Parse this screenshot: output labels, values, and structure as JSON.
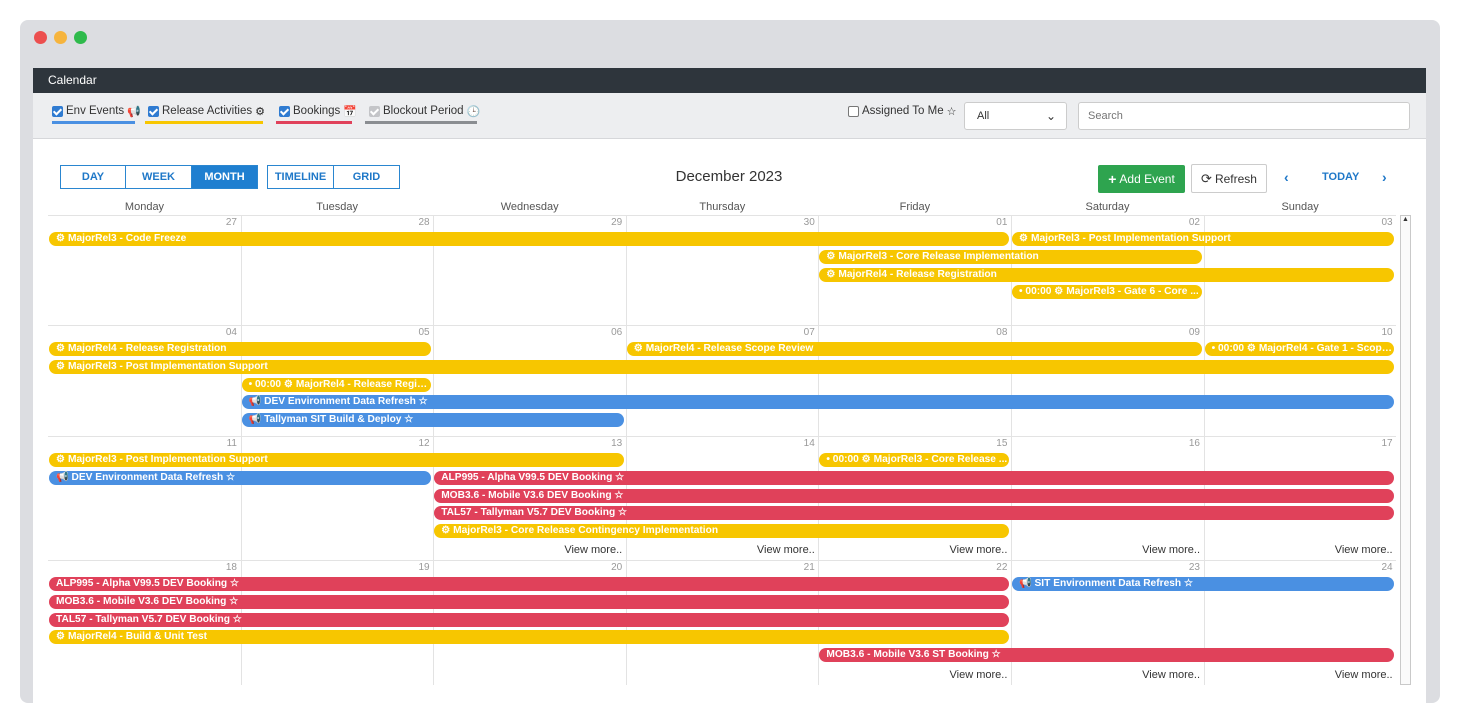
{
  "app": {
    "title": "Calendar"
  },
  "filters": [
    {
      "label": "Env Events",
      "icon": "📢",
      "checked": true,
      "color": "#4a90e2"
    },
    {
      "label": "Release Activities",
      "icon": "⚙",
      "checked": true,
      "color": "#f7c600"
    },
    {
      "label": "Bookings",
      "icon": "📅",
      "checked": true,
      "color": "#e0415a"
    },
    {
      "label": "Blockout Period",
      "icon": "🕒",
      "checked": true,
      "color": "#8a8d91"
    }
  ],
  "assigned": {
    "label": "Assigned To Me",
    "icon": "☆",
    "checked": false
  },
  "select": {
    "value": "All"
  },
  "search": {
    "placeholder": "Search"
  },
  "views": {
    "day": "DAY",
    "week": "WEEK",
    "month": "MONTH",
    "timeline": "TIMELINE",
    "grid": "GRID",
    "active": "MONTH"
  },
  "header": {
    "month": "December 2023",
    "add_label": "Add Event",
    "refresh_label": "Refresh",
    "today_label": "TODAY",
    "prev_icon": "‹",
    "next_icon": "›"
  },
  "days": [
    "Monday",
    "Tuesday",
    "Wednesday",
    "Thursday",
    "Friday",
    "Saturday",
    "Sunday"
  ],
  "weeks": [
    {
      "dates": [
        "27",
        "28",
        "29",
        "30",
        "01",
        "02",
        "03"
      ],
      "events": [
        {
          "text": "⚙ MajorRel3 - Code Freeze",
          "type": "y",
          "start": 0,
          "end": 4,
          "lane": 0
        },
        {
          "text": "⚙ MajorRel3 - Post Implementation Support",
          "type": "y",
          "start": 5,
          "end": 6,
          "lane": 0
        },
        {
          "text": "⚙ MajorRel3 - Core Release Implementation",
          "type": "y",
          "start": 4,
          "end": 5,
          "lane": 1
        },
        {
          "text": "⚙ MajorRel4 - Release Registration",
          "type": "y",
          "start": 4,
          "end": 6,
          "lane": 2
        },
        {
          "text": "• 00:00 ⚙ MajorRel3 - Gate 6 - Core ...",
          "type": "y",
          "start": 5,
          "end": 5,
          "lane": 3
        }
      ],
      "more": []
    },
    {
      "dates": [
        "04",
        "05",
        "06",
        "07",
        "08",
        "09",
        "10"
      ],
      "events": [
        {
          "text": "⚙ MajorRel4 - Release Registration",
          "type": "y",
          "start": 0,
          "end": 1,
          "lane": 0
        },
        {
          "text": "⚙ MajorRel4 - Release Scope Review",
          "type": "y",
          "start": 3,
          "end": 5,
          "lane": 0
        },
        {
          "text": "• 00:00 ⚙ MajorRel4 - Gate 1 - Scope...",
          "type": "y",
          "start": 6,
          "end": 6,
          "lane": 0
        },
        {
          "text": "⚙ MajorRel3 - Post Implementation Support",
          "type": "y",
          "start": 0,
          "end": 6,
          "lane": 1
        },
        {
          "text": "• 00:00 ⚙ MajorRel4 - Release Regist...",
          "type": "y",
          "start": 1,
          "end": 1,
          "lane": 2
        },
        {
          "text": "📢 DEV Environment Data Refresh ☆",
          "type": "b",
          "start": 1,
          "end": 6,
          "lane": 3
        },
        {
          "text": "📢 Tallyman SIT Build & Deploy ☆",
          "type": "b",
          "start": 1,
          "end": 2,
          "lane": 4
        }
      ],
      "more": []
    },
    {
      "dates": [
        "11",
        "12",
        "13",
        "14",
        "15",
        "16",
        "17"
      ],
      "events": [
        {
          "text": "⚙ MajorRel3 - Post Implementation Support",
          "type": "y",
          "start": 0,
          "end": 2,
          "lane": 0
        },
        {
          "text": "• 00:00 ⚙ MajorRel3 - Core Release ...",
          "type": "y",
          "start": 4,
          "end": 4,
          "lane": 0
        },
        {
          "text": "📢 DEV Environment Data Refresh ☆",
          "type": "b",
          "start": 0,
          "end": 1,
          "lane": 1
        },
        {
          "text": "ALP995 - Alpha V99.5 DEV Booking ☆",
          "type": "r",
          "start": 2,
          "end": 6,
          "lane": 1
        },
        {
          "text": "MOB3.6 - Mobile V3.6 DEV Booking ☆",
          "type": "r",
          "start": 2,
          "end": 6,
          "lane": 2
        },
        {
          "text": "TAL57 - Tallyman V5.7 DEV Booking ☆",
          "type": "r",
          "start": 2,
          "end": 6,
          "lane": 3
        },
        {
          "text": "⚙ MajorRel3 - Core Release Contingency Implementation",
          "type": "y",
          "start": 2,
          "end": 4,
          "lane": 4
        }
      ],
      "more": [
        "View more..",
        "View more..",
        "View more..",
        "View more..",
        "View more.."
      ]
    },
    {
      "dates": [
        "18",
        "19",
        "20",
        "21",
        "22",
        "23",
        "24"
      ],
      "events": [
        {
          "text": "ALP995 - Alpha V99.5 DEV Booking ☆",
          "type": "r",
          "start": 0,
          "end": 4,
          "lane": 0
        },
        {
          "text": "📢 SIT Environment Data Refresh ☆",
          "type": "b",
          "start": 5,
          "end": 6,
          "lane": 0
        },
        {
          "text": "MOB3.6 - Mobile V3.6 DEV Booking ☆",
          "type": "r",
          "start": 0,
          "end": 4,
          "lane": 1
        },
        {
          "text": "TAL57 - Tallyman V5.7 DEV Booking ☆",
          "type": "r",
          "start": 0,
          "end": 4,
          "lane": 2
        },
        {
          "text": "⚙ MajorRel4 - Build & Unit Test",
          "type": "y",
          "start": 0,
          "end": 4,
          "lane": 3
        },
        {
          "text": "MOB3.6 - Mobile V3.6 ST Booking ☆",
          "type": "r",
          "start": 4,
          "end": 6,
          "lane": 4
        }
      ],
      "more": [
        "View more..",
        "View more..",
        "View more.."
      ]
    }
  ]
}
